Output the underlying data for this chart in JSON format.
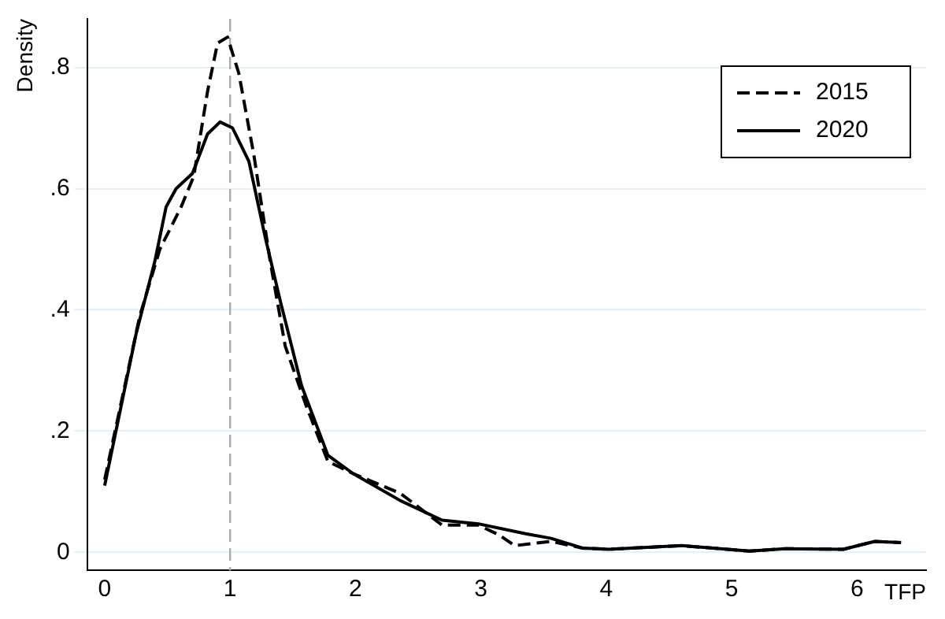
{
  "chart_data": {
    "type": "line",
    "xlabel": "TFP",
    "ylabel": "Density",
    "xlim": [
      -0.14,
      6.55
    ],
    "xticks": [
      0,
      1,
      2,
      3,
      4,
      5,
      6
    ],
    "ylim": [
      -0.03,
      0.88
    ],
    "yticks": [
      0,
      {
        "value": 0.2,
        "label": ".2"
      },
      {
        "value": 0.4,
        "label": ".4"
      },
      {
        "value": 0.6,
        "label": ".6"
      },
      {
        "value": 0.8,
        "label": ".8"
      }
    ],
    "grid": "y",
    "legend": "top right",
    "marker": "none",
    "ref_lines": [
      {
        "axis": "x",
        "value": 1,
        "color": "#aaaaaa",
        "line_style": "dashed"
      }
    ],
    "series": [
      {
        "name": "2015",
        "color": "#000000",
        "line_style": "dashed",
        "x": [
          0,
          0.28,
          0.44,
          0.61,
          0.71,
          0.82,
          0.9,
          0.98,
          1.07,
          1.19,
          1.32,
          1.44,
          1.61,
          1.78,
          1.98,
          2.36,
          2.69,
          2.98,
          3.15,
          3.27,
          3.56,
          3.81,
          4.02,
          4.6,
          5.14,
          5.43,
          5.89,
          6.14,
          6.35
        ],
        "values": [
          0.12,
          0.39,
          0.5,
          0.57,
          0.62,
          0.76,
          0.84,
          0.85,
          0.79,
          0.655,
          0.48,
          0.34,
          0.24,
          0.15,
          0.13,
          0.097,
          0.045,
          0.045,
          0.028,
          0.011,
          0.018,
          0.007,
          0.005,
          0.011,
          0.002,
          0.006,
          0.005,
          0.018,
          0.016
        ]
      },
      {
        "name": "2020",
        "color": "#000000",
        "line_style": "solid",
        "x": [
          0,
          0.25,
          0.4,
          0.49,
          0.57,
          0.7,
          0.82,
          0.92,
          1.02,
          1.15,
          1.28,
          1.4,
          1.57,
          1.78,
          1.98,
          2.36,
          2.69,
          2.98,
          3.35,
          3.56,
          3.81,
          4.02,
          4.6,
          5.14,
          5.43,
          5.89,
          6.14,
          6.35
        ],
        "values": [
          0.11,
          0.36,
          0.48,
          0.57,
          0.6,
          0.625,
          0.69,
          0.71,
          0.7,
          0.645,
          0.52,
          0.415,
          0.275,
          0.16,
          0.13,
          0.085,
          0.053,
          0.047,
          0.031,
          0.023,
          0.007,
          0.005,
          0.011,
          0.002,
          0.006,
          0.005,
          0.018,
          0.016
        ]
      }
    ]
  }
}
